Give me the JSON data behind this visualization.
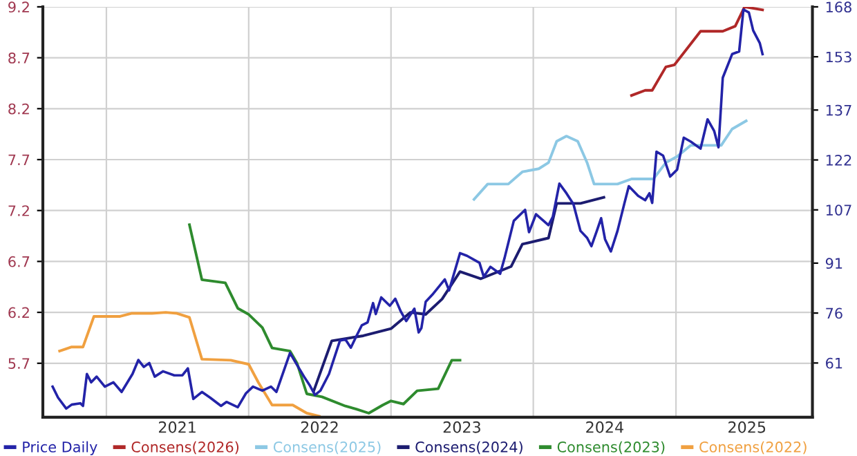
{
  "chart_data": {
    "type": "line",
    "xlim": [
      "2020-07-22",
      "2025-12-17"
    ],
    "xticks": [
      {
        "value": "2021-01-01",
        "label": null
      },
      {
        "value": "2021-07-02",
        "label": "2021"
      },
      {
        "value": "2022-01-01",
        "label": null
      },
      {
        "value": "2022-07-02",
        "label": "2022"
      },
      {
        "value": "2023-01-01",
        "label": null
      },
      {
        "value": "2023-07-02",
        "label": "2023"
      },
      {
        "value": "2024-01-01",
        "label": null
      },
      {
        "value": "2024-07-02",
        "label": "2024"
      },
      {
        "value": "2025-01-01",
        "label": null
      },
      {
        "value": "2025-07-02",
        "label": "2025"
      }
    ],
    "ylim": [
      5.17,
      9.2
    ],
    "yticks": [
      {
        "value": 5.7,
        "label": "5.7"
      },
      {
        "value": 6.2,
        "label": "6.2"
      },
      {
        "value": 6.7,
        "label": "6.7"
      },
      {
        "value": 7.2,
        "label": "7.2"
      },
      {
        "value": 7.7,
        "label": "7.7"
      },
      {
        "value": 8.2,
        "label": "8.2"
      },
      {
        "value": 8.7,
        "label": "8.7"
      },
      {
        "value": 9.2,
        "label": "9.2"
      }
    ],
    "y2lim": [
      44.7,
      168
    ],
    "y2ticks": [
      61,
      76,
      91,
      107,
      122,
      137,
      153,
      168
    ],
    "grid": true,
    "legend": "bottom",
    "marker": "none",
    "line_style": "solid",
    "series": [
      {
        "name": "Price Daily",
        "color": "#2323a8",
        "axis": "y2",
        "x": [
          "2020-08-16",
          "2020-08-30",
          "2020-09-20",
          "2020-10-04",
          "2020-10-26",
          "2020-11-02",
          "2020-11-12",
          "2020-11-23",
          "2020-12-07",
          "2020-12-28",
          "2021-01-19",
          "2021-02-09",
          "2021-03-09",
          "2021-03-24",
          "2021-04-07",
          "2021-04-21",
          "2021-05-05",
          "2021-05-26",
          "2021-06-24",
          "2021-07-15",
          "2021-07-29",
          "2021-08-12",
          "2021-09-03",
          "2021-09-24",
          "2021-10-22",
          "2021-11-05",
          "2021-12-04",
          "2021-12-25",
          "2022-01-12",
          "2022-02-05",
          "2022-02-27",
          "2022-03-13",
          "2022-04-17",
          "2022-05-02",
          "2022-05-23",
          "2022-06-06",
          "2022-06-20",
          "2022-07-04",
          "2022-07-26",
          "2022-08-09",
          "2022-08-23",
          "2022-09-06",
          "2022-09-20",
          "2022-10-04",
          "2022-10-18",
          "2022-11-02",
          "2022-11-16",
          "2022-11-23",
          "2022-12-07",
          "2022-12-29",
          "2023-01-12",
          "2023-01-26",
          "2023-02-09",
          "2023-03-02",
          "2023-03-13",
          "2023-03-20",
          "2023-03-31",
          "2023-04-17",
          "2023-05-19",
          "2023-05-30",
          "2023-06-27",
          "2023-07-15",
          "2023-08-16",
          "2023-08-27",
          "2023-09-13",
          "2023-10-08",
          "2023-10-19",
          "2023-11-12",
          "2023-12-11",
          "2023-12-21",
          "2024-01-08",
          "2024-02-09",
          "2024-02-20",
          "2024-03-08",
          "2024-03-26",
          "2024-04-13",
          "2024-05-01",
          "2024-05-18",
          "2024-05-29",
          "2024-06-12",
          "2024-06-23",
          "2024-07-03",
          "2024-07-18",
          "2024-08-04",
          "2024-08-22",
          "2024-09-02",
          "2024-09-26",
          "2024-10-14",
          "2024-10-25",
          "2024-11-01",
          "2024-11-12",
          "2024-11-29",
          "2024-12-17",
          "2025-01-04",
          "2025-01-21",
          "2025-02-08",
          "2025-03-05",
          "2025-03-23",
          "2025-04-09",
          "2025-04-20",
          "2025-05-01",
          "2025-05-25",
          "2025-06-12",
          "2025-06-23",
          "2025-07-07",
          "2025-07-18",
          "2025-08-04",
          "2025-08-11"
        ],
        "values": [
          53.9,
          50.6,
          47.3,
          48.5,
          48.9,
          48.1,
          57.7,
          55.2,
          56.9,
          53.9,
          55.2,
          52.3,
          57.7,
          61.9,
          59.8,
          61.0,
          56.9,
          58.5,
          57.3,
          57.3,
          59.4,
          50.2,
          52.3,
          50.6,
          48.1,
          49.3,
          47.7,
          51.9,
          53.9,
          52.7,
          53.9,
          52.3,
          64.0,
          61.0,
          56.9,
          54.4,
          51.4,
          52.7,
          57.7,
          62.7,
          67.7,
          68.1,
          65.6,
          69.0,
          72.3,
          73.2,
          79.0,
          75.7,
          80.7,
          78.2,
          80.3,
          76.5,
          73.6,
          77.3,
          70.2,
          71.5,
          79.4,
          81.5,
          86.1,
          82.8,
          94.0,
          93.2,
          91.1,
          86.9,
          89.9,
          87.8,
          92.4,
          103.7,
          107.0,
          100.3,
          105.7,
          102.4,
          104.9,
          114.9,
          112.0,
          108.7,
          100.7,
          98.6,
          96.1,
          100.7,
          104.5,
          98.2,
          94.5,
          100.7,
          109.1,
          114.1,
          111.2,
          109.9,
          112.0,
          109.1,
          124.5,
          123.3,
          117.0,
          119.1,
          128.7,
          127.5,
          125.4,
          134.2,
          130.7,
          125.8,
          146.7,
          153.8,
          154.6,
          167.2,
          166.3,
          160.9,
          157.1,
          153.8
        ]
      },
      {
        "name": "Consens(2026)",
        "color": "#b02828",
        "x": [
          "2024-09-09",
          "2024-10-14",
          "2024-11-01",
          "2024-12-06",
          "2024-12-28",
          "2025-03-05",
          "2025-05-01",
          "2025-06-02",
          "2025-06-26",
          "2025-08-11"
        ],
        "values": [
          8.33,
          8.38,
          8.38,
          8.61,
          8.63,
          8.96,
          8.96,
          9.01,
          9.2,
          9.17
        ]
      },
      {
        "name": "Consens(2025)",
        "color": "#8cc8e4",
        "x": [
          "2023-08-02",
          "2023-09-06",
          "2023-10-29",
          "2023-12-04",
          "2024-01-15",
          "2024-02-09",
          "2024-03-01",
          "2024-03-26",
          "2024-04-24",
          "2024-05-18",
          "2024-06-05",
          "2024-08-04",
          "2024-09-09",
          "2024-11-04",
          "2024-12-06",
          "2025-01-04",
          "2025-02-08",
          "2025-04-27",
          "2025-05-25",
          "2025-06-30"
        ],
        "values": [
          7.31,
          7.46,
          7.46,
          7.58,
          7.61,
          7.67,
          7.88,
          7.93,
          7.88,
          7.67,
          7.46,
          7.46,
          7.51,
          7.51,
          7.67,
          7.73,
          7.84,
          7.84,
          8.0,
          8.08
        ]
      },
      {
        "name": "Consens(2024)",
        "color": "#1c1c70",
        "x": [
          "2022-06-17",
          "2022-08-02",
          "2022-10-22",
          "2023-01-01",
          "2023-02-20",
          "2023-03-31",
          "2023-05-12",
          "2023-06-27",
          "2023-08-19",
          "2023-11-05",
          "2023-12-04",
          "2024-02-09",
          "2024-03-01",
          "2024-05-01",
          "2024-06-30"
        ],
        "values": [
          5.43,
          5.92,
          5.97,
          6.04,
          6.2,
          6.18,
          6.33,
          6.6,
          6.53,
          6.65,
          6.87,
          6.93,
          7.27,
          7.27,
          7.33
        ]
      },
      {
        "name": "Consens(2023)",
        "color": "#2e8b2e",
        "x": [
          "2021-08-02",
          "2021-09-03",
          "2021-11-02",
          "2021-12-04",
          "2022-01-01",
          "2022-02-05",
          "2022-03-02",
          "2022-04-17",
          "2022-05-05",
          "2022-05-30",
          "2022-07-08",
          "2022-09-06",
          "2022-10-04",
          "2022-11-05",
          "2022-12-11",
          "2023-01-01",
          "2023-02-02",
          "2023-03-09",
          "2023-05-02",
          "2023-06-06",
          "2023-06-27"
        ],
        "values": [
          7.06,
          6.52,
          6.49,
          6.24,
          6.18,
          6.05,
          5.85,
          5.82,
          5.7,
          5.4,
          5.37,
          5.28,
          5.25,
          5.21,
          5.29,
          5.33,
          5.3,
          5.43,
          5.45,
          5.73,
          5.73
        ]
      },
      {
        "name": "Consens(2022)",
        "color": "#f0a040",
        "x": [
          "2020-09-03",
          "2020-10-04",
          "2020-11-02",
          "2020-11-30",
          "2021-02-05",
          "2021-03-06",
          "2021-04-28",
          "2021-06-02",
          "2021-07-01",
          "2021-08-02",
          "2021-09-03",
          "2021-11-16",
          "2022-01-01",
          "2022-01-26",
          "2022-03-02",
          "2022-04-24",
          "2022-05-30",
          "2022-07-01"
        ],
        "values": [
          5.82,
          5.86,
          5.86,
          6.16,
          6.16,
          6.19,
          6.19,
          6.2,
          6.19,
          6.15,
          5.74,
          5.73,
          5.69,
          5.51,
          5.29,
          5.29,
          5.21,
          5.18
        ]
      }
    ]
  }
}
